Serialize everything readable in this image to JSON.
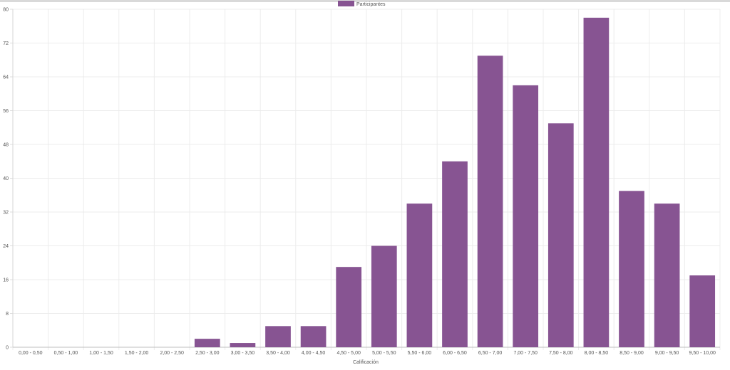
{
  "chart_data": {
    "type": "bar",
    "title": "",
    "xlabel": "Calificación",
    "ylabel": "",
    "ylim": [
      0,
      80
    ],
    "yticks": [
      "0",
      "8",
      "16",
      "24",
      "32",
      "40",
      "48",
      "56",
      "64",
      "72",
      "80"
    ],
    "grid": true,
    "legend_position": "top-center",
    "categories": [
      "0,00 - 0,50",
      "0,50 - 1,00",
      "1,00 - 1,50",
      "1,50 - 2,00",
      "2,00 - 2,50",
      "2,50 - 3,00",
      "3,00 - 3,50",
      "3,50 - 4,00",
      "4,00 - 4,50",
      "4,50 - 5,00",
      "5,00 - 5,50",
      "5,50 - 6,00",
      "6,00 - 6,50",
      "6,50 - 7,00",
      "7,00 - 7,50",
      "7,50 - 8,00",
      "8,00 - 8,50",
      "8,50 - 9,00",
      "9,00 - 9,50",
      "9,50 - 10,00"
    ],
    "series": [
      {
        "name": "Participantes",
        "color": "#875492",
        "values": [
          0,
          0,
          0,
          0,
          0,
          2,
          1,
          5,
          5,
          19,
          24,
          34,
          44,
          69,
          62,
          53,
          78,
          37,
          34,
          17
        ]
      }
    ]
  }
}
